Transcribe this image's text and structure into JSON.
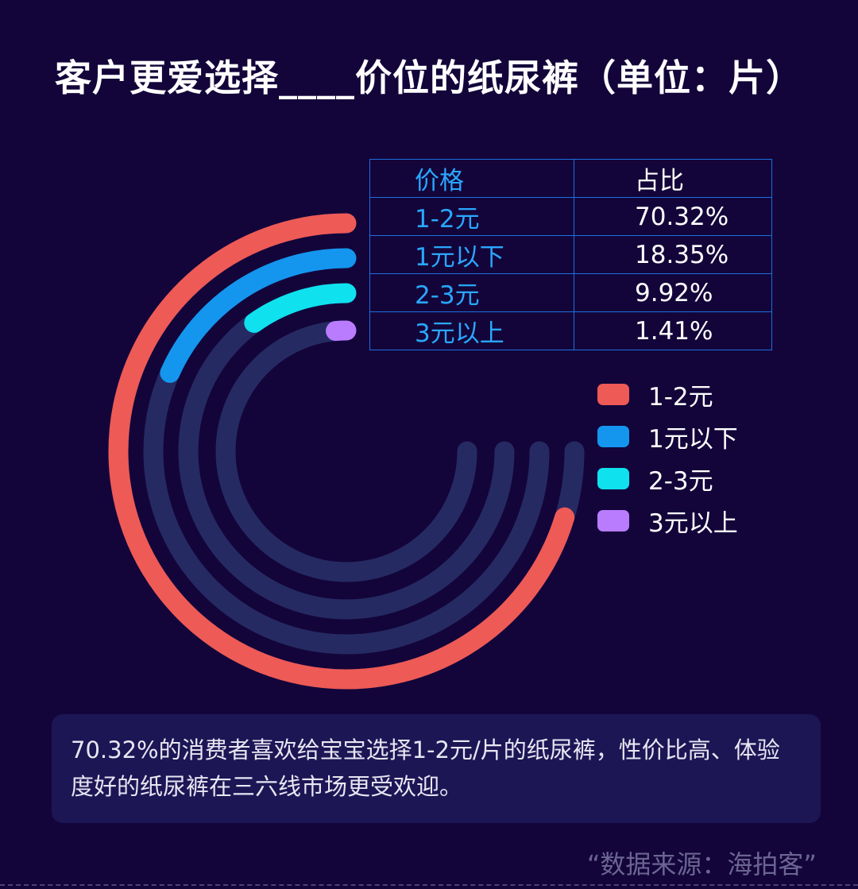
{
  "title": "客户更爱选择____价位的纸尿裤（单位：片）",
  "table": {
    "header_price": "价格",
    "header_share": "占比",
    "rows": [
      {
        "price": "1-2元",
        "share": "70.32%"
      },
      {
        "price": "1元以下",
        "share": "18.35%"
      },
      {
        "price": "2-3元",
        "share": "9.92%"
      },
      {
        "price": "3元以上",
        "share": "1.41%"
      }
    ]
  },
  "summary": "70.32%的消费者喜欢给宝宝选择1-2元/片的纸尿裤，性价比高、体验度好的纸尿裤在三六线市场更受欢迎。",
  "source": "“数据来源：海拍客”",
  "colors": {
    "background": "#13053a",
    "track": "#262a63",
    "table_border": "#1c6fe0",
    "label_blue": "#2aa7ff"
  },
  "chart_data": {
    "type": "radial-bar",
    "unit": "%",
    "max": 100,
    "track_extent_percent": 75,
    "categories": [
      "1-2元",
      "1元以下",
      "2-3元",
      "3元以上"
    ],
    "values": [
      70.32,
      18.35,
      9.92,
      1.41
    ],
    "colors": [
      "#ee5a56",
      "#1496ef",
      "#0fe1ef",
      "#b97cff"
    ],
    "legend": [
      "1-2元",
      "1元以下",
      "2-3元",
      "3元以上"
    ],
    "legend_position": "right"
  }
}
